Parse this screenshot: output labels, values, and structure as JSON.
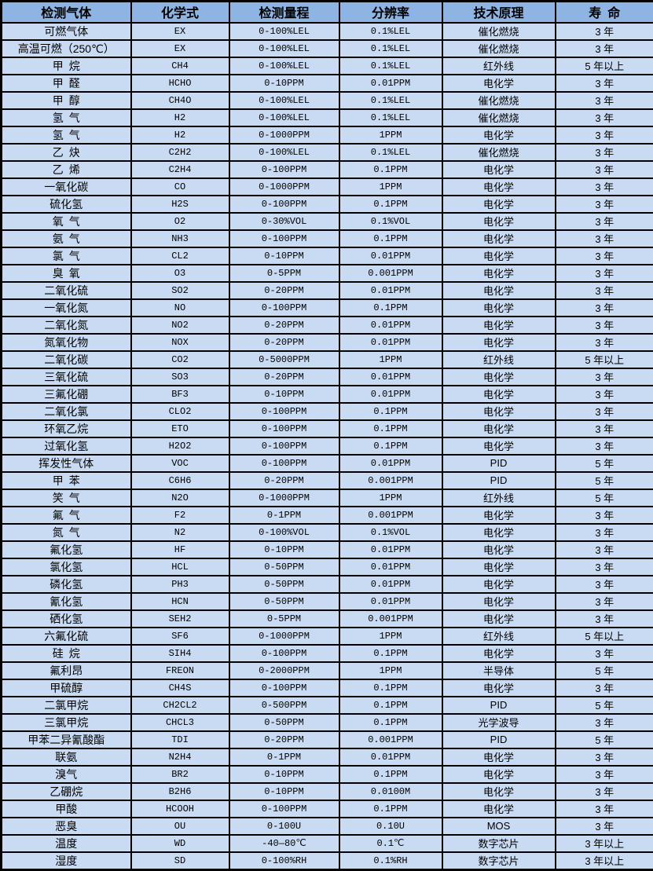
{
  "colors": {
    "header_bg": "#8db4e2",
    "row_bg": "#c9dbf2",
    "border": "#000000",
    "text": "#000000"
  },
  "table": {
    "headers": [
      "检测气体",
      "化学式",
      "检测量程",
      "分辨率",
      "技术原理",
      "寿 命"
    ],
    "rows": [
      [
        "可燃气体",
        "EX",
        "0-100%LEL",
        "0.1%LEL",
        "催化燃烧",
        "3 年"
      ],
      [
        "高温可燃（250℃）",
        "EX",
        "0-100%LEL",
        "0.1%LEL",
        "催化燃烧",
        "3 年"
      ],
      [
        "甲 烷",
        "CH4",
        "0-100%LEL",
        "0.1%LEL",
        "红外线",
        "5 年以上"
      ],
      [
        "甲 醛",
        "HCHO",
        "0-10PPM",
        "0.01PPM",
        "电化学",
        "3 年"
      ],
      [
        "甲 醇",
        "CH4O",
        "0-100%LEL",
        "0.1%LEL",
        "催化燃烧",
        "3 年"
      ],
      [
        "氢 气",
        "H2",
        "0-100%LEL",
        "0.1%LEL",
        "催化燃烧",
        "3 年"
      ],
      [
        "氢 气",
        "H2",
        "0-1000PPM",
        "1PPM",
        "电化学",
        "3 年"
      ],
      [
        "乙 炔",
        "C2H2",
        "0-100%LEL",
        "0.1%LEL",
        "催化燃烧",
        "3 年"
      ],
      [
        "乙 烯",
        "C2H4",
        "0-100PPM",
        "0.1PPM",
        "电化学",
        "3 年"
      ],
      [
        "一氧化碳",
        "CO",
        "0-1000PPM",
        "1PPM",
        "电化学",
        "3 年"
      ],
      [
        "硫化氢",
        "H2S",
        "0-100PPM",
        "0.1PPM",
        "电化学",
        "3 年"
      ],
      [
        "氧 气",
        "O2",
        "0-30%VOL",
        "0.1%VOL",
        "电化学",
        "3 年"
      ],
      [
        "氨 气",
        "NH3",
        "0-100PPM",
        "0.1PPM",
        "电化学",
        "3 年"
      ],
      [
        "氯 气",
        "CL2",
        "0-10PPM",
        "0.01PPM",
        "电化学",
        "3 年"
      ],
      [
        "臭 氧",
        "O3",
        "0-5PPM",
        "0.001PPM",
        "电化学",
        "3 年"
      ],
      [
        "二氧化硫",
        "SO2",
        "0-20PPM",
        "0.01PPM",
        "电化学",
        "3 年"
      ],
      [
        "一氧化氮",
        "NO",
        "0-100PPM",
        "0.1PPM",
        "电化学",
        "3 年"
      ],
      [
        "二氧化氮",
        "NO2",
        "0-20PPM",
        "0.01PPM",
        "电化学",
        "3 年"
      ],
      [
        "氮氧化物",
        "NOX",
        "0-20PPM",
        "0.01PPM",
        "电化学",
        "3 年"
      ],
      [
        "二氧化碳",
        "CO2",
        "0-5000PPM",
        "1PPM",
        "红外线",
        "5 年以上"
      ],
      [
        "三氧化硫",
        "SO3",
        "0-20PPM",
        "0.01PPM",
        "电化学",
        "3 年"
      ],
      [
        "三氟化硼",
        "BF3",
        "0-10PPM",
        "0.01PPM",
        "电化学",
        "3 年"
      ],
      [
        "二氧化氯",
        "CLO2",
        "0-100PPM",
        "0.1PPM",
        "电化学",
        "3 年"
      ],
      [
        "环氧乙烷",
        "ETO",
        "0-100PPM",
        "0.1PPM",
        "电化学",
        "3 年"
      ],
      [
        "过氧化氢",
        "H2O2",
        "0-100PPM",
        "0.1PPM",
        "电化学",
        "3 年"
      ],
      [
        "挥发性气体",
        "VOC",
        "0-100PPM",
        "0.01PPM",
        "PID",
        "5 年"
      ],
      [
        "甲 苯",
        "C6H6",
        "0-20PPM",
        "0.001PPM",
        "PID",
        "5 年"
      ],
      [
        "笑 气",
        "N2O",
        "0-1000PPM",
        "1PPM",
        "红外线",
        "5 年"
      ],
      [
        "氟 气",
        "F2",
        "0-1PPM",
        "0.001PPM",
        "电化学",
        "3 年"
      ],
      [
        "氮 气",
        "N2",
        "0-100%VOL",
        "0.1%VOL",
        "电化学",
        "3 年"
      ],
      [
        "氟化氢",
        "HF",
        "0-10PPM",
        "0.01PPM",
        "电化学",
        "3 年"
      ],
      [
        "氯化氢",
        "HCL",
        "0-50PPM",
        "0.01PPM",
        "电化学",
        "3 年"
      ],
      [
        "磷化氢",
        "PH3",
        "0-50PPM",
        "0.01PPM",
        "电化学",
        "3 年"
      ],
      [
        "氰化氢",
        "HCN",
        "0-50PPM",
        "0.01PPM",
        "电化学",
        "3 年"
      ],
      [
        "硒化氢",
        "SEH2",
        "0-5PPM",
        "0.001PPM",
        "电化学",
        "3 年"
      ],
      [
        "六氟化硫",
        "SF6",
        "0-1000PPM",
        "1PPM",
        "红外线",
        "5 年以上"
      ],
      [
        "硅 烷",
        "SIH4",
        "0-100PPM",
        "0.1PPM",
        "电化学",
        "3 年"
      ],
      [
        "氟利昂",
        "FREON",
        "0-2000PPM",
        "1PPM",
        "半导体",
        "5 年"
      ],
      [
        "甲硫醇",
        "CH4S",
        "0-100PPM",
        "0.1PPM",
        "电化学",
        "3 年"
      ],
      [
        "二氯甲烷",
        "CH2CL2",
        "0-500PPM",
        "0.1PPM",
        "PID",
        "5 年"
      ],
      [
        "三氯甲烷",
        "CHCL3",
        "0-50PPM",
        "0.1PPM",
        "光学波导",
        "3 年"
      ],
      [
        "甲苯二异氰酸酯",
        "TDI",
        "0-20PPM",
        "0.001PPM",
        "PID",
        "5 年"
      ],
      [
        "联氨",
        "N2H4",
        "0-1PPM",
        "0.01PPM",
        "电化学",
        "3 年"
      ],
      [
        "溴气",
        "BR2",
        "0-10PPM",
        "0.1PPM",
        "电化学",
        "3 年"
      ],
      [
        "乙硼烷",
        "B2H6",
        "0-10PPM",
        "0.0100M",
        "电化学",
        "3 年"
      ],
      [
        "甲酸",
        "HCOOH",
        "0-100PPM",
        "0.1PPM",
        "电化学",
        "3 年"
      ],
      [
        "恶臭",
        "OU",
        "0-100U",
        "0.10U",
        "MOS",
        "3 年"
      ],
      [
        "温度",
        "WD",
        "-40—80℃",
        "0.1℃",
        "数字芯片",
        "3 年以上"
      ],
      [
        "湿度",
        "SD",
        "0-100%RH",
        "0.1%RH",
        "数字芯片",
        "3 年以上"
      ]
    ]
  }
}
